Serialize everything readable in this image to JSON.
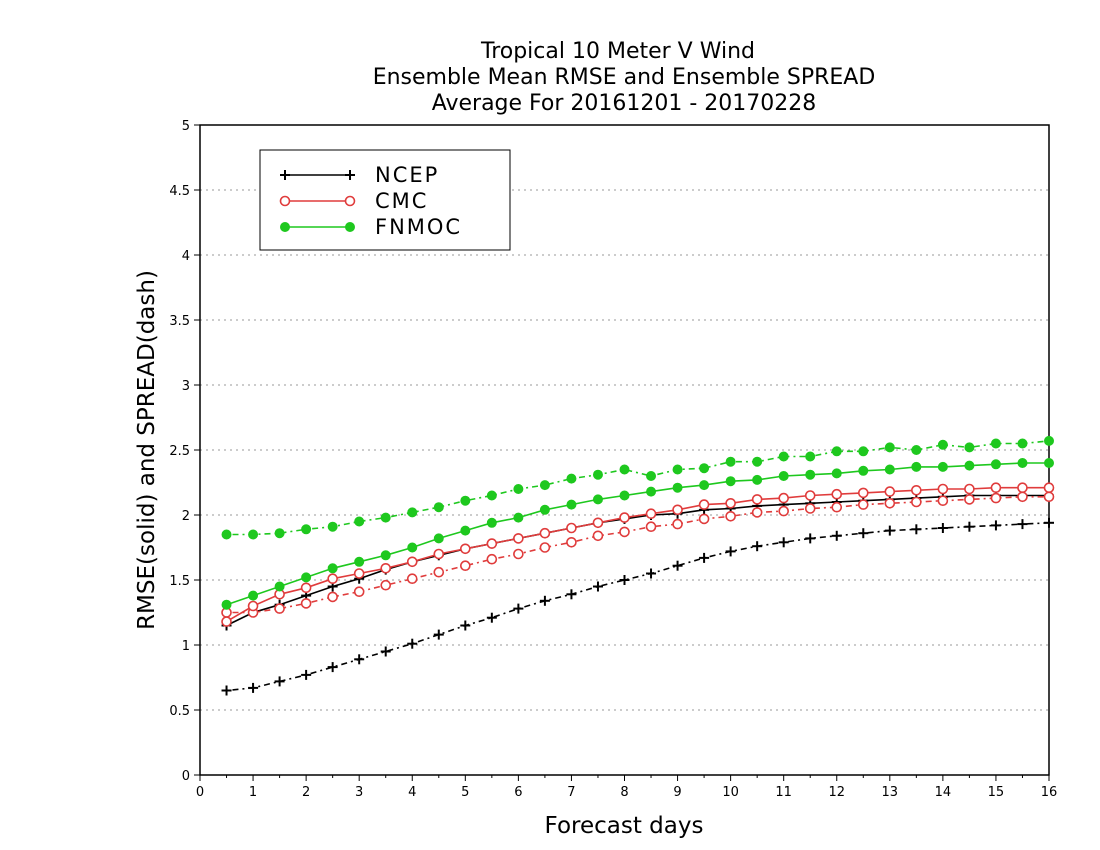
{
  "chart_data": {
    "type": "line",
    "title_lines": [
      "Tropical 10 Meter V Wind",
      "Ensemble Mean RMSE and Ensemble SPREAD",
      "Average For 20161201 - 20170228"
    ],
    "xlabel": "Forecast days",
    "ylabel": "RMSE(solid) and SPREAD(dash)",
    "xlim": [
      0,
      16
    ],
    "ylim": [
      0,
      5
    ],
    "xticks": [
      "0",
      "1",
      "2",
      "3",
      "4",
      "5",
      "6",
      "7",
      "8",
      "9",
      "10",
      "11",
      "12",
      "13",
      "14",
      "15",
      "16"
    ],
    "yticks": [
      "0",
      "0.5",
      "1",
      "1.5",
      "2",
      "2.5",
      "3",
      "3.5",
      "4",
      "4.5",
      "5"
    ],
    "grid": "horizontal dotted",
    "legend_position": "top-left",
    "x": [
      0.5,
      1,
      1.5,
      2,
      2.5,
      3,
      3.5,
      4,
      4.5,
      5,
      5.5,
      6,
      6.5,
      7,
      7.5,
      8,
      8.5,
      9,
      9.5,
      10,
      10.5,
      11,
      11.5,
      12,
      12.5,
      13,
      13.5,
      14,
      14.5,
      15,
      15.5,
      16
    ],
    "series": [
      {
        "name": "NCEP",
        "color": "#000000",
        "marker": "plus",
        "rmse": [
          1.15,
          1.25,
          1.31,
          1.38,
          1.45,
          1.51,
          1.58,
          1.64,
          1.69,
          1.74,
          1.78,
          1.82,
          1.86,
          1.9,
          1.94,
          1.97,
          2.0,
          2.01,
          2.04,
          2.05,
          2.07,
          2.08,
          2.09,
          2.1,
          2.11,
          2.12,
          2.13,
          2.14,
          2.15,
          2.15,
          2.15,
          2.15
        ],
        "spread": [
          0.65,
          0.67,
          0.72,
          0.77,
          0.83,
          0.89,
          0.95,
          1.01,
          1.08,
          1.15,
          1.21,
          1.28,
          1.34,
          1.39,
          1.45,
          1.5,
          1.55,
          1.61,
          1.67,
          1.72,
          1.76,
          1.79,
          1.82,
          1.84,
          1.86,
          1.88,
          1.89,
          1.9,
          1.91,
          1.92,
          1.93,
          1.94
        ]
      },
      {
        "name": "CMC",
        "color": "#e03c3c",
        "marker": "open-circle",
        "rmse": [
          1.18,
          1.3,
          1.39,
          1.44,
          1.51,
          1.55,
          1.59,
          1.64,
          1.7,
          1.74,
          1.78,
          1.82,
          1.86,
          1.9,
          1.94,
          1.98,
          2.01,
          2.04,
          2.08,
          2.09,
          2.12,
          2.13,
          2.15,
          2.16,
          2.17,
          2.18,
          2.19,
          2.2,
          2.2,
          2.21,
          2.21,
          2.21
        ],
        "spread": [
          1.25,
          1.25,
          1.28,
          1.32,
          1.37,
          1.41,
          1.46,
          1.51,
          1.56,
          1.61,
          1.66,
          1.7,
          1.75,
          1.79,
          1.84,
          1.87,
          1.91,
          1.93,
          1.97,
          1.99,
          2.02,
          2.03,
          2.05,
          2.06,
          2.08,
          2.09,
          2.1,
          2.11,
          2.12,
          2.13,
          2.14,
          2.14
        ]
      },
      {
        "name": "FNMOC",
        "color": "#1ec81e",
        "marker": "filled-circle",
        "rmse": [
          1.31,
          1.38,
          1.45,
          1.52,
          1.59,
          1.64,
          1.69,
          1.75,
          1.82,
          1.88,
          1.94,
          1.98,
          2.04,
          2.08,
          2.12,
          2.15,
          2.18,
          2.21,
          2.23,
          2.26,
          2.27,
          2.3,
          2.31,
          2.32,
          2.34,
          2.35,
          2.37,
          2.37,
          2.38,
          2.39,
          2.4,
          2.4
        ],
        "spread": [
          1.85,
          1.85,
          1.86,
          1.89,
          1.91,
          1.95,
          1.98,
          2.02,
          2.06,
          2.11,
          2.15,
          2.2,
          2.23,
          2.28,
          2.31,
          2.35,
          2.3,
          2.35,
          2.36,
          2.41,
          2.41,
          2.45,
          2.45,
          2.49,
          2.49,
          2.52,
          2.5,
          2.54,
          2.52,
          2.55,
          2.55,
          2.57
        ]
      }
    ]
  }
}
